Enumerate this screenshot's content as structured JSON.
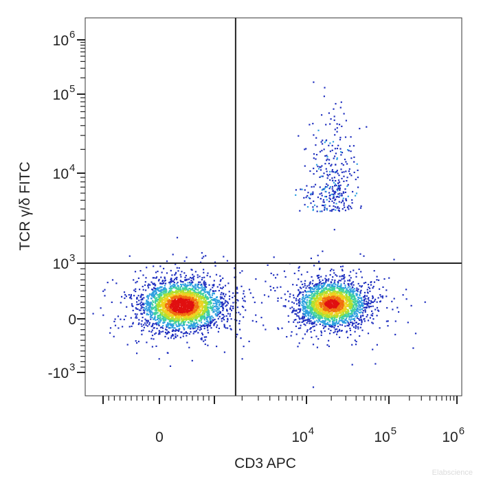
{
  "chart_data": {
    "type": "scatter",
    "title": "",
    "xlabel": "CD3 APC",
    "ylabel": "TCR γ/δ FITC",
    "x_scale": "biexponential",
    "y_scale": "biexponential",
    "x_tick_labels": [
      {
        "base": "0",
        "exp": "",
        "value": 0
      },
      {
        "base": "10",
        "exp": "4",
        "value": 10000
      },
      {
        "base": "10",
        "exp": "5",
        "value": 100000
      },
      {
        "base": "10",
        "exp": "6",
        "value": 1000000
      }
    ],
    "y_tick_labels": [
      {
        "base": "10",
        "exp": "6",
        "value": 1000000
      },
      {
        "base": "10",
        "exp": "5",
        "value": 100000
      },
      {
        "base": "10",
        "exp": "4",
        "value": 10000
      },
      {
        "base": "10",
        "exp": "3",
        "value": 1000
      },
      {
        "base": "0",
        "exp": "",
        "value": 0
      },
      {
        "base": "-10",
        "exp": "3",
        "value": -1000
      }
    ],
    "quadrant_gate": {
      "x": 1700,
      "y": 1000
    },
    "populations": [
      {
        "name": "",
        "x_center": 400,
        "y_center": 250,
        "events": 3000,
        "peak_color": "#e8200c"
      },
      {
        "name": "",
        "x_center": 20000,
        "y_center": 280,
        "events": 2300,
        "peak_color": "#f08a10"
      },
      {
        "name": "",
        "x_center": 20000,
        "y_center": 3500,
        "events": 320,
        "peak_color": "#2b3fd6"
      }
    ],
    "density_colors": [
      "#1f2fbf",
      "#2fa0e0",
      "#40d0a0",
      "#b0e030",
      "#f0d020",
      "#f07010",
      "#e01010"
    ],
    "grid": false,
    "legend": "none"
  },
  "watermark": "Elabscience"
}
